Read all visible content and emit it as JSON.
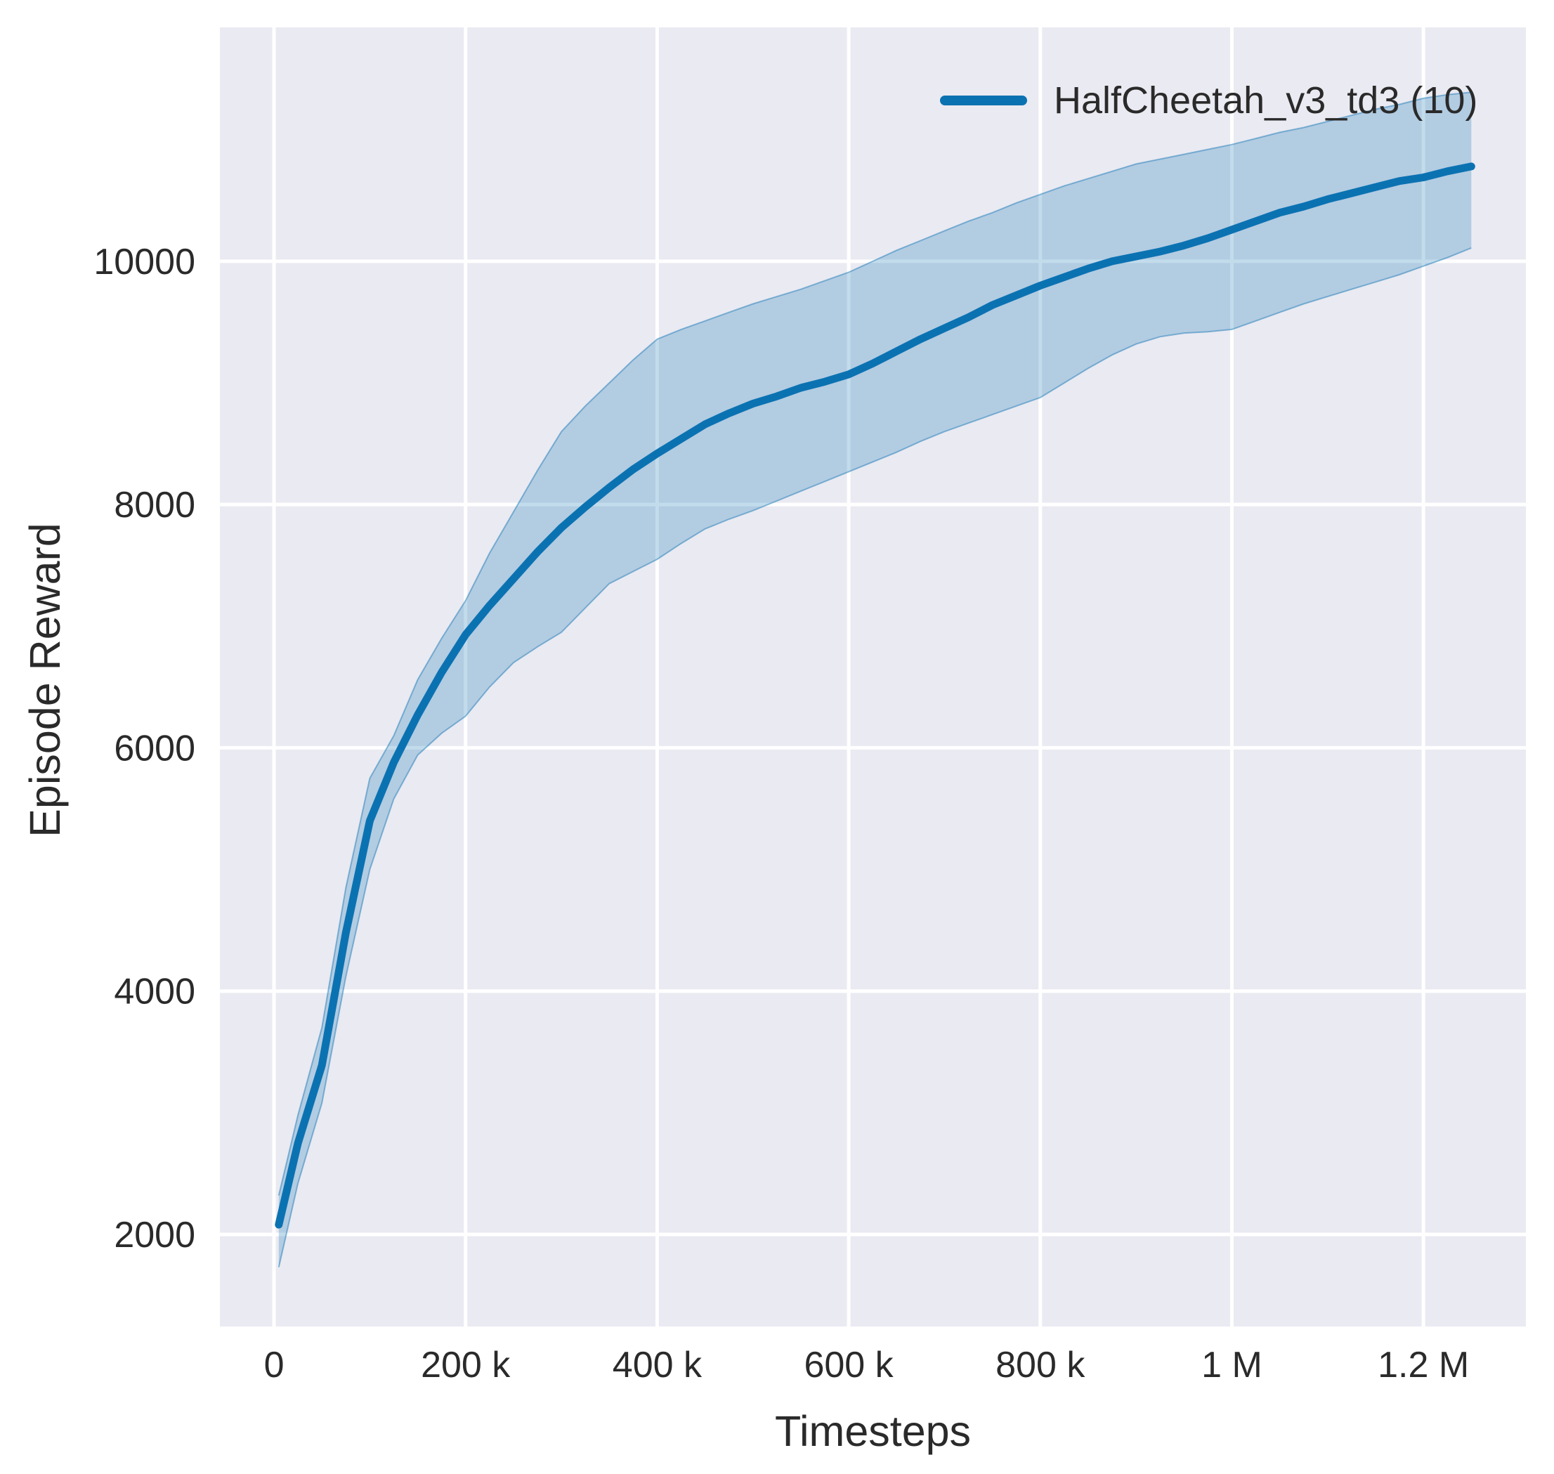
{
  "figure": {
    "background": "#ffffff",
    "plot_background": "#eaeaf2",
    "grid_color": "#ffffff",
    "text_color": "#2a2a2a"
  },
  "legend": {
    "label": "HalfCheetah_v3_td3 (10)",
    "position": "upper right"
  },
  "chart_data": {
    "type": "line",
    "title": "",
    "xlabel": "Timesteps",
    "ylabel": "Episode Reward",
    "grid": true,
    "legend_position": "upper right",
    "xlim": [
      -56500,
      1307000
    ],
    "ylim": [
      1243,
      11923
    ],
    "x_ticks": [
      {
        "value": 0,
        "label": "0"
      },
      {
        "value": 200000,
        "label": "200 k"
      },
      {
        "value": 400000,
        "label": "400 k"
      },
      {
        "value": 600000,
        "label": "600 k"
      },
      {
        "value": 800000,
        "label": "800 k"
      },
      {
        "value": 1000000,
        "label": "1 M"
      },
      {
        "value": 1200000,
        "label": "1.2 M"
      }
    ],
    "y_ticks": [
      {
        "value": 2000,
        "label": "2000"
      },
      {
        "value": 4000,
        "label": "4000"
      },
      {
        "value": 6000,
        "label": "6000"
      },
      {
        "value": 8000,
        "label": "8000"
      },
      {
        "value": 10000,
        "label": "10000"
      }
    ],
    "series": [
      {
        "name": "HalfCheetah_v3_td3 (10)",
        "color": "#0b72b2",
        "band_fill_opacity": 0.25,
        "band_edge_opacity": 0.45,
        "x": [
          5000,
          25000,
          50000,
          75000,
          100000,
          125000,
          150000,
          175000,
          200000,
          225000,
          250000,
          275000,
          300000,
          325000,
          350000,
          375000,
          400000,
          425000,
          450000,
          475000,
          500000,
          525000,
          550000,
          575000,
          600000,
          625000,
          650000,
          675000,
          700000,
          725000,
          750000,
          775000,
          800000,
          825000,
          850000,
          875000,
          900000,
          925000,
          950000,
          975000,
          1000000,
          1025000,
          1050000,
          1075000,
          1100000,
          1125000,
          1150000,
          1175000,
          1200000,
          1225000,
          1250000
        ],
        "mean": [
          2080,
          2750,
          3390,
          4480,
          5400,
          5880,
          6270,
          6620,
          6930,
          7170,
          7390,
          7610,
          7810,
          7980,
          8140,
          8290,
          8420,
          8540,
          8660,
          8750,
          8830,
          8890,
          8960,
          9010,
          9070,
          9160,
          9260,
          9360,
          9450,
          9540,
          9640,
          9720,
          9800,
          9870,
          9940,
          10000,
          10040,
          10080,
          10130,
          10190,
          10260,
          10330,
          10400,
          10450,
          10510,
          10560,
          10610,
          10660,
          10690,
          10740,
          10780
        ],
        "lower": [
          1730,
          2420,
          3080,
          4120,
          5000,
          5580,
          5940,
          6120,
          6260,
          6500,
          6700,
          6830,
          6950,
          7150,
          7350,
          7450,
          7550,
          7680,
          7800,
          7880,
          7950,
          8030,
          8110,
          8190,
          8270,
          8350,
          8430,
          8520,
          8600,
          8670,
          8740,
          8810,
          8880,
          9000,
          9120,
          9230,
          9320,
          9380,
          9410,
          9420,
          9440,
          9510,
          9580,
          9650,
          9710,
          9770,
          9830,
          9890,
          9960,
          10030,
          10110
        ],
        "upper": [
          2320,
          2980,
          3700,
          4850,
          5750,
          6100,
          6560,
          6900,
          7210,
          7600,
          7940,
          8280,
          8600,
          8810,
          9000,
          9190,
          9360,
          9440,
          9510,
          9580,
          9650,
          9710,
          9770,
          9840,
          9910,
          10000,
          10090,
          10170,
          10250,
          10330,
          10400,
          10480,
          10550,
          10620,
          10680,
          10740,
          10800,
          10840,
          10880,
          10920,
          10960,
          11010,
          11060,
          11100,
          11150,
          11200,
          11250,
          11290,
          11340,
          11370,
          11390
        ]
      }
    ]
  }
}
